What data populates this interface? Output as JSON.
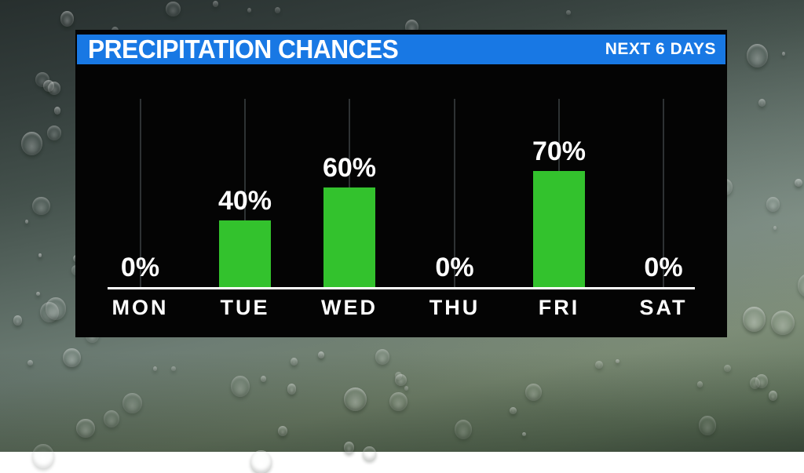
{
  "header": {
    "title": "PRECIPITATION CHANCES",
    "badge": "NEXT 6 DAYS"
  },
  "chart_data": {
    "type": "bar",
    "title": "PRECIPITATION CHANCES",
    "subtitle": "NEXT 6 DAYS",
    "categories": [
      "MON",
      "TUE",
      "WED",
      "THU",
      "FRI",
      "SAT"
    ],
    "values": [
      0,
      40,
      60,
      0,
      70,
      0
    ],
    "value_labels": [
      "0%",
      "40%",
      "60%",
      "0%",
      "70%",
      "0%"
    ],
    "unit": "%",
    "ylim": [
      0,
      100
    ],
    "grid": "vertical tick behind each category",
    "legend": "none",
    "bar_color": "#33c22d"
  },
  "colors": {
    "header_blue": "#1878e4",
    "bar_green": "#33c22d",
    "panel_black": "#040404",
    "gridline_gray": "#2e3234",
    "text_white": "#ffffff"
  }
}
